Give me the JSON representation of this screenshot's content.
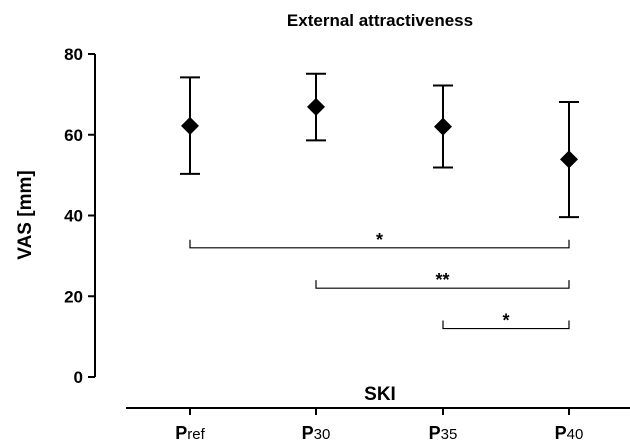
{
  "chart_data": {
    "type": "scatter",
    "title": "External attractiveness",
    "ylabel": "VAS [mm]",
    "xlabel": "SKI",
    "ylim": [
      0,
      80
    ],
    "yticks": [
      0,
      20,
      40,
      60,
      80
    ],
    "grid": false,
    "categories": [
      {
        "main": "P",
        "sub": "ref"
      },
      {
        "main": "P",
        "sub": "30"
      },
      {
        "main": "P",
        "sub": "35"
      },
      {
        "main": "P",
        "sub": "40"
      }
    ],
    "points": [
      {
        "mean": 62.2,
        "upper": 74.2,
        "lower": 50.3
      },
      {
        "mean": 66.9,
        "upper": 75.1,
        "lower": 58.6
      },
      {
        "mean": 62.0,
        "upper": 72.2,
        "lower": 51.9
      },
      {
        "mean": 53.9,
        "upper": 68.1,
        "lower": 39.6
      }
    ],
    "marker_color": "#000000",
    "significance": [
      {
        "from": 0,
        "to": 3,
        "y": 32,
        "label": "*"
      },
      {
        "from": 1,
        "to": 3,
        "y": 22,
        "label": "**"
      },
      {
        "from": 2,
        "to": 3,
        "y": 12,
        "label": "*"
      }
    ]
  }
}
